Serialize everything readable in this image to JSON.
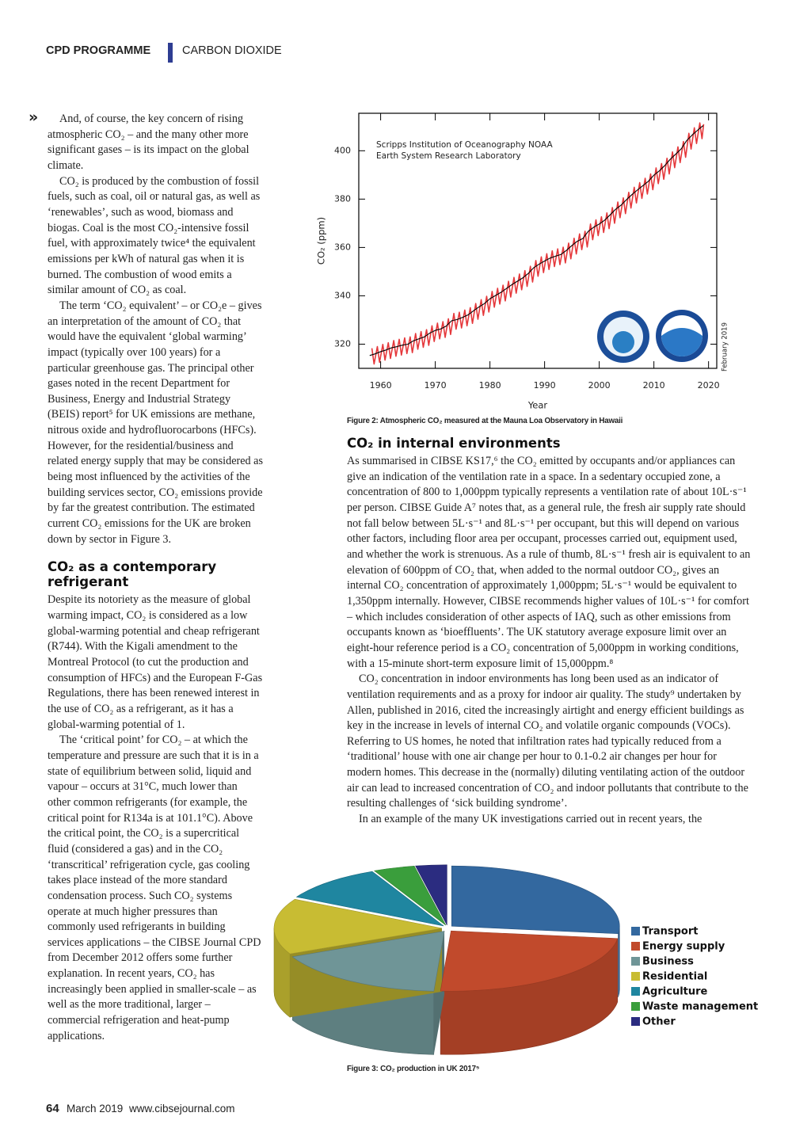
{
  "header": {
    "section": "CPD PROGRAMME",
    "topic": "CARBON DIOXIDE"
  },
  "continued_marker": "»",
  "left_column": {
    "paragraphs_before": [
      "And, of course, the key concern of rising atmospheric CO₂ – and the many other more significant gases – is its impact on the global climate.",
      "CO₂ is produced by the combustion of fossil fuels, such as coal, oil or natural gas, as well as ‘renewables’, such as wood, biomass and biogas. Coal is the most CO₂-intensive fossil fuel, with approximately twice⁴ the equivalent emissions per kWh of natural gas when it is burned. The combustion of wood emits a similar amount of CO₂ as coal.",
      "The term ‘CO₂ equivalent’ – or CO₂e – gives an interpretation of the amount of CO₂ that would have the equivalent ‘global warming’ impact (typically over 100 years) for a particular greenhouse gas. The principal other gases noted in the recent Department for Business, Energy and Industrial Strategy (BEIS) report⁵ for UK emissions are methane, nitrous oxide and hydrofluorocarbons (HFCs). However, for the residential/business and related energy supply that may be considered as being most influenced by the activities of the building services sector, CO₂ emissions provide by far the greatest contribution. The estimated current CO₂ emissions for the UK are broken down by sector in Figure 3."
    ],
    "heading": "CO₂ as a contemporary refrigerant",
    "paragraphs_after": [
      "Despite its notoriety as the measure of global warming impact, CO₂ is considered as a low global-warming potential and cheap refrigerant (R744). With the Kigali amendment to the Montreal Protocol (to cut the production and consumption of HFCs) and the European F-Gas Regulations, there has been renewed interest in the use of CO₂ as a refrigerant, as it has a global-warming potential of 1.",
      "The ‘critical point’ for CO₂ – at which the temperature and pressure are such that it is in a state of equilibrium between solid, liquid and vapour – occurs at 31°C, much lower than other common refrigerants (for example, the critical point for R134a is at 101.1°C). Above the critical point, the CO₂ is a supercritical fluid (considered a gas) and in the CO₂ ‘transcritical’ refrigeration cycle, gas cooling takes place instead of the more standard condensation process. Such CO₂ systems operate at much higher pressures than commonly used refrigerants in building services applications – the CIBSE Journal CPD from December 2012 offers some further explanation. In recent years, CO₂ has increasingly been applied in smaller-scale – as well as the more traditional, larger – commercial refrigeration and heat-pump applications."
    ]
  },
  "right_column": {
    "heading": "CO₂ in internal environments",
    "paragraphs": [
      "As summarised in CIBSE KS17,⁶ the CO₂ emitted by occupants and/or appliances can give an indication of the ventilation rate in a space. In a sedentary occupied zone, a concentration of 800 to 1,000ppm typically represents a ventilation rate of about 10L·s⁻¹ per person. CIBSE Guide A⁷ notes that, as a general rule, the fresh air supply rate should not fall below between 5L·s⁻¹ and 8L·s⁻¹ per occupant, but this will depend on various other factors, including floor area per occupant, processes carried out, equipment used, and whether the work is strenuous. As a rule of thumb, 8L·s⁻¹ fresh air is equivalent to an elevation of 600ppm of CO₂ that, when added to the normal outdoor CO₂, gives an internal CO₂ concentration of approximately 1,000ppm; 5L·s⁻¹ would be equivalent to 1,350ppm internally. However, CIBSE recommends higher values of 10L·s⁻¹ for comfort – which includes consideration of other aspects of IAQ, such as other emissions from occupants known as ‘bioeffluents’. The UK statutory average exposure limit over an eight-hour reference period is a CO₂ concentration of 5,000ppm in working conditions, with a 15-minute short-term exposure limit of 15,000ppm.⁸",
      "CO₂ concentration in indoor environments has long been used as an indicator of ventilation requirements and as a proxy for indoor air quality. The study⁹ undertaken by Allen, published in 2016, cited the increasingly airtight and energy efficient buildings as key in the increase in levels of internal CO₂ and volatile organic compounds (VOCs). Referring to US homes, he noted that infiltration rates had typically reduced from a ‘traditional’ house with one air change per hour to 0.1-0.2 air changes per hour for modern homes. This decrease in the (normally) diluting ventilating action of the outdoor air can lead to increased concentration of CO₂ and indoor pollutants that contribute to the resulting challenges of ‘sick building syndrome’.",
      "In an example of the many UK investigations carried out in recent years, the"
    ]
  },
  "chart_data": [
    {
      "type": "line",
      "caption": "Figure 2: Atmospheric CO₂ measured at the Mauna Loa Observatory in Hawaii",
      "xlabel": "Year",
      "ylabel": "CO₂ (ppm)",
      "annotations": [
        "Scripps Institution of Oceanography NOAA",
        "Earth System Research Laboratory",
        "February 2019"
      ],
      "xlim": [
        1956,
        2021.5
      ],
      "ylim": [
        310,
        415.5
      ],
      "xticks": [
        1960,
        1970,
        1980,
        1990,
        2000,
        2010,
        2020
      ],
      "yticks": [
        320,
        340,
        360,
        380,
        400
      ],
      "grid": false,
      "series": [
        {
          "color": "#e5383b",
          "x": [
            1958.4,
            1958.8,
            1959.4,
            1959.8,
            1960.4,
            1960.8,
            1961.4,
            1961.8,
            1962.4,
            1962.8,
            1963.4,
            1963.8,
            1964.4,
            1964.8,
            1965.4,
            1965.8,
            1966.4,
            1966.8,
            1967.4,
            1967.8,
            1968.4,
            1968.8,
            1969.4,
            1969.8,
            1970.4,
            1970.8,
            1971.4,
            1971.8,
            1972.4,
            1972.8,
            1973.4,
            1973.8,
            1974.4,
            1974.8,
            1975.4,
            1975.8,
            1976.4,
            1976.8,
            1977.4,
            1977.8,
            1978.4,
            1978.8,
            1979.4,
            1979.8,
            1980.4,
            1980.8,
            1981.4,
            1981.8,
            1982.4,
            1982.8,
            1983.4,
            1983.8,
            1984.4,
            1984.8,
            1985.4,
            1985.8,
            1986.4,
            1986.8,
            1987.4,
            1987.8,
            1988.4,
            1988.8,
            1989.4,
            1989.8,
            1990.4,
            1990.8,
            1991.4,
            1991.8,
            1992.4,
            1992.8,
            1993.4,
            1993.8,
            1994.4,
            1994.8,
            1995.4,
            1995.8,
            1996.4,
            1996.8,
            1997.4,
            1997.8,
            1998.4,
            1998.8,
            1999.4,
            1999.8,
            2000.4,
            2000.8,
            2001.4,
            2001.8,
            2002.4,
            2002.8,
            2003.4,
            2003.8,
            2004.4,
            2004.8,
            2005.4,
            2005.8,
            2006.4,
            2006.8,
            2007.4,
            2007.8,
            2008.4,
            2008.8,
            2009.4,
            2009.8,
            2010.4,
            2010.8,
            2011.4,
            2011.8,
            2012.4,
            2012.8,
            2013.4,
            2013.8,
            2014.4,
            2014.8,
            2015.4,
            2015.8,
            2016.4,
            2016.8,
            2017.4,
            2017.8,
            2018.4,
            2018.8,
            2019.1
          ],
          "values": [
            318.3,
            311.8,
            319.0,
            312.5,
            319.9,
            313.4,
            320.6,
            314.1,
            321.5,
            315.0,
            322.0,
            315.5,
            322.6,
            316.1,
            323.0,
            316.5,
            324.4,
            317.9,
            325.2,
            318.7,
            326.0,
            319.5,
            327.6,
            321.1,
            328.7,
            322.2,
            329.3,
            322.8,
            330.5,
            324.0,
            332.7,
            326.2,
            333.2,
            326.7,
            334.1,
            327.6,
            335.1,
            328.6,
            336.8,
            330.3,
            338.4,
            331.9,
            339.8,
            333.3,
            341.8,
            335.3,
            343.1,
            336.6,
            344.4,
            337.9,
            346.0,
            339.5,
            347.6,
            341.1,
            349.0,
            342.5,
            350.4,
            343.9,
            352.2,
            345.7,
            354.6,
            348.1,
            356.1,
            349.6,
            357.4,
            350.9,
            358.6,
            352.1,
            359.4,
            352.9,
            360.1,
            353.6,
            361.8,
            355.3,
            363.8,
            357.3,
            365.6,
            359.1,
            366.7,
            360.2,
            369.7,
            363.2,
            371.4,
            364.9,
            372.7,
            366.2,
            374.3,
            367.8,
            376.5,
            370.0,
            378.8,
            372.3,
            380.5,
            374.0,
            382.8,
            376.3,
            384.9,
            378.4,
            386.8,
            380.3,
            388.6,
            382.1,
            390.4,
            383.9,
            392.9,
            386.4,
            394.7,
            388.2,
            396.9,
            390.4,
            399.5,
            393.0,
            401.6,
            395.1,
            403.8,
            397.3,
            407.2,
            400.7,
            409.5,
            403.0,
            411.5,
            405.0,
            411.0
          ]
        },
        {
          "color": "#000000",
          "x": [
            1958,
            1959,
            1960,
            1961,
            1962,
            1963,
            1964,
            1965,
            1966,
            1967,
            1968,
            1969,
            1970,
            1971,
            1972,
            1973,
            1974,
            1975,
            1976,
            1977,
            1978,
            1979,
            1980,
            1981,
            1982,
            1983,
            1984,
            1985,
            1986,
            1987,
            1988,
            1989,
            1990,
            1991,
            1992,
            1993,
            1994,
            1995,
            1996,
            1997,
            1998,
            1999,
            2000,
            2001,
            2002,
            2003,
            2004,
            2005,
            2006,
            2007,
            2008,
            2009,
            2010,
            2011,
            2012,
            2013,
            2014,
            2015,
            2016,
            2017,
            2018,
            2019
          ],
          "values": [
            315.3,
            316.0,
            316.9,
            317.6,
            318.5,
            319.0,
            319.6,
            320.0,
            321.4,
            322.2,
            323.0,
            324.6,
            325.7,
            326.3,
            327.5,
            329.7,
            330.2,
            331.1,
            332.1,
            333.8,
            335.4,
            336.8,
            338.8,
            340.1,
            341.4,
            343.0,
            344.6,
            346.0,
            347.4,
            349.2,
            351.6,
            353.1,
            354.4,
            355.6,
            356.4,
            357.1,
            358.8,
            360.8,
            362.6,
            363.7,
            366.7,
            368.4,
            369.7,
            371.3,
            373.5,
            375.8,
            377.5,
            379.8,
            381.9,
            383.8,
            385.6,
            387.4,
            389.9,
            391.7,
            393.9,
            396.5,
            398.6,
            400.8,
            404.2,
            406.5,
            408.5,
            410.4
          ]
        }
      ]
    },
    {
      "type": "pie",
      "caption": "Figure 3: CO₂ production in UK 2017⁵",
      "categories": [
        "Transport",
        "Energy supply",
        "Business",
        "Residential",
        "Agriculture",
        "Waste management",
        "Other"
      ],
      "values": [
        27,
        24,
        17,
        15,
        10,
        4,
        3
      ],
      "colors": [
        "#33689f",
        "#c14a2c",
        "#6f9597",
        "#c8bc33",
        "#1f86a0",
        "#3a9e3c",
        "#2b2c80"
      ],
      "legend": "right"
    }
  ],
  "footer": {
    "page": "64",
    "issue": "March 2019",
    "website": "www.cibsejournal.com"
  }
}
